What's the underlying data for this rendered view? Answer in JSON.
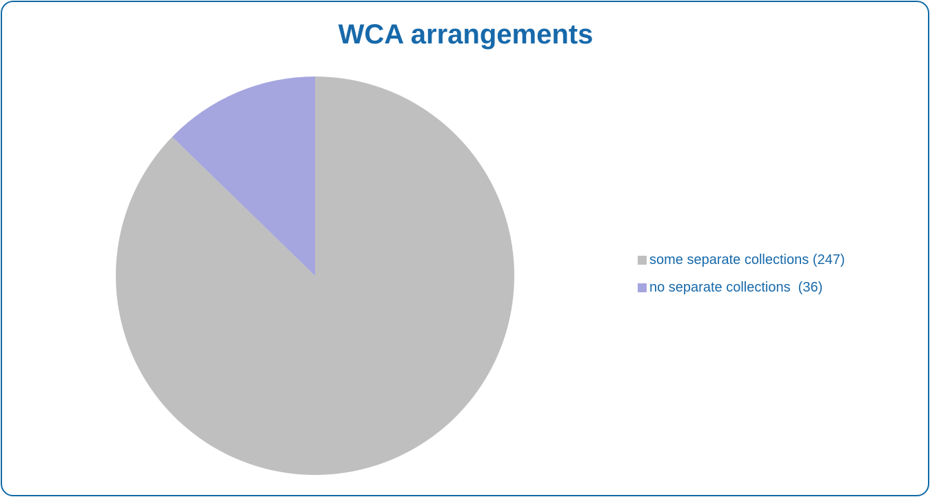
{
  "colors": {
    "border": "#0f6aa6",
    "title": "#1769aa",
    "legend_text": "#1769aa"
  },
  "chart_data": {
    "type": "pie",
    "title": "WCA arrangements",
    "legend_position": "right",
    "start_angle_deg": 0,
    "direction": "clockwise",
    "slices": [
      {
        "label": "some separate collections (247)",
        "value": 247,
        "color": "#bfbfbf"
      },
      {
        "label": "no separate collections  (36)",
        "value": 36,
        "color": "#a5a5e0"
      }
    ]
  }
}
